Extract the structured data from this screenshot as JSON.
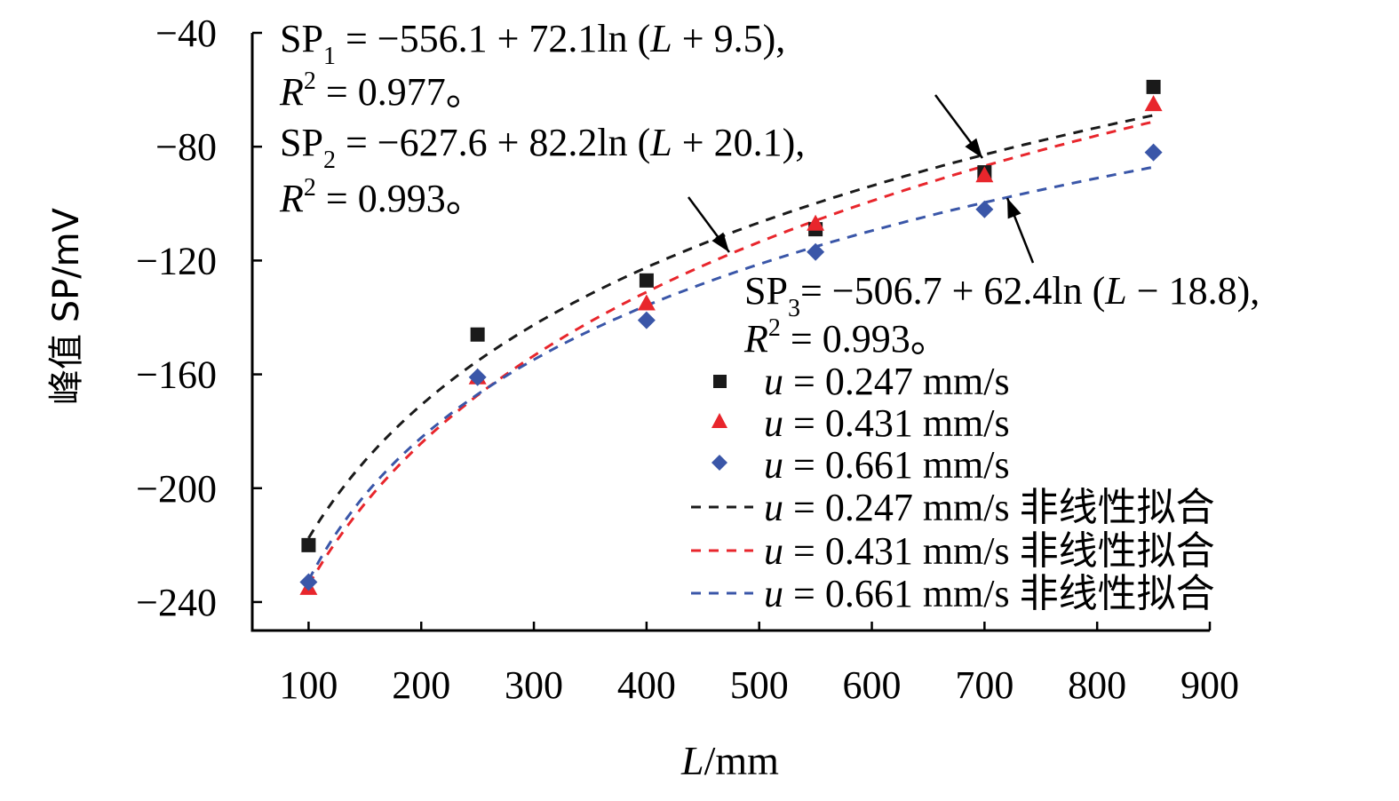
{
  "chart_data": {
    "type": "scatter",
    "xlabel": "L/mm",
    "xlabel_italic": "L",
    "xlabel_rest": "/mm",
    "ylabel": "峰值 SP/mV",
    "xlim": [
      50,
      900
    ],
    "ylim": [
      -250,
      -40
    ],
    "xticks": [
      100,
      200,
      300,
      400,
      500,
      600,
      700,
      800,
      900
    ],
    "yticks": [
      -40,
      -80,
      -120,
      -160,
      -200,
      -240
    ],
    "xticks_labels": [
      "100",
      "200",
      "300",
      "400",
      "500",
      "600",
      "700",
      "800",
      "900"
    ],
    "yticks_labels": [
      "−40",
      "−80",
      "−120",
      "−160",
      "−200",
      "−240"
    ],
    "grid": false,
    "legend_position": "right",
    "series": [
      {
        "name": "u = 0.247 mm/s",
        "u_label": "u",
        "value_label": " = 0.247 mm/s",
        "marker": "square",
        "color": "#1a1a1a",
        "x": [
          100,
          250,
          400,
          550,
          700,
          850
        ],
        "y": [
          -220,
          -146,
          -127,
          -109,
          -89,
          -59
        ],
        "fit": {
          "a": -556.1,
          "b": 72.1,
          "c": 9.5
        },
        "fit_name": "u = 0.247 mm/s 非线性拟合",
        "fit_value_label": " = 0.247 mm/s 非线性拟合"
      },
      {
        "name": "u = 0.431 mm/s",
        "u_label": "u",
        "value_label": " = 0.431 mm/s",
        "marker": "triangle",
        "color": "#e8262c",
        "x": [
          100,
          250,
          400,
          550,
          700,
          850
        ],
        "y": [
          -235,
          -161,
          -135,
          -107,
          -90,
          -65
        ],
        "fit": {
          "a": -627.6,
          "b": 82.2,
          "c": 20.1
        },
        "fit_name": "u = 0.431 mm/s 非线性拟合",
        "fit_value_label": " = 0.431 mm/s 非线性拟合"
      },
      {
        "name": "u = 0.661 mm/s",
        "u_label": "u",
        "value_label": " = 0.661 mm/s",
        "marker": "diamond",
        "color": "#3a56a8",
        "x": [
          100,
          250,
          400,
          550,
          700,
          850
        ],
        "y": [
          -233,
          -161,
          -141,
          -117,
          -102,
          -82
        ],
        "fit": {
          "a": -506.7,
          "b": 62.4,
          "c": -18.8
        },
        "fit_name": "u = 0.661 mm/s 非线性拟合",
        "fit_value_label": " = 0.661 mm/s 非线性拟合"
      }
    ],
    "annotations": [
      {
        "line1": {
          "sp": "SP",
          "sub": "1",
          "rest": " = −556.1 + 72.1ln (",
          "L": "L",
          "rest2": " + 9.5),"
        },
        "line2": {
          "R": "R",
          "sup": "2",
          "rest": " = 0.977。"
        }
      },
      {
        "line1": {
          "sp": "SP",
          "sub": "2",
          "rest": " = −627.6 + 82.2ln (",
          "L": "L",
          "rest2": " + 20.1),"
        },
        "line2": {
          "R": "R",
          "sup": "2",
          "rest": " = 0.993。"
        }
      },
      {
        "line1": {
          "sp": "SP",
          "sub": "3",
          "rest": "= −506.7 + 62.4ln (",
          "L": "L",
          "rest2": " − 18.8),"
        },
        "line2": {
          "R": "R",
          "sup": "2",
          "rest": " = 0.993。"
        }
      }
    ]
  }
}
